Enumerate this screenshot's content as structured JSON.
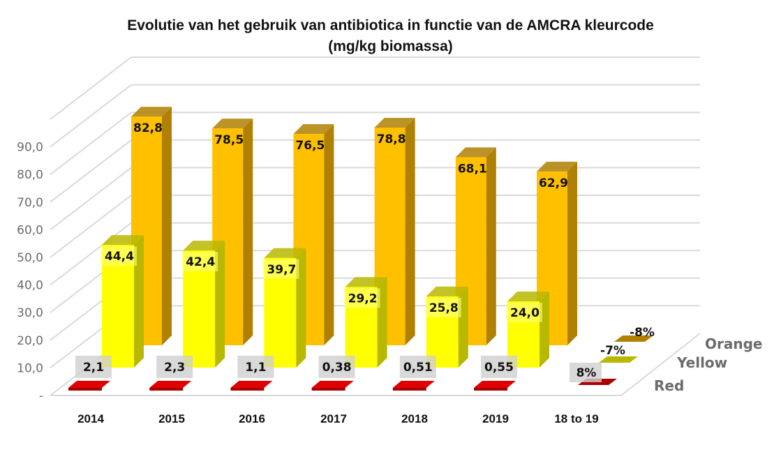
{
  "chart_data": {
    "type": "bar",
    "subtype": "3d-column-stacked-rows",
    "title": "Evolutie van het gebruik van antibiotica in functie van de AMCRA kleurcode",
    "subtitle": "(mg/kg biomassa)",
    "xlabel": "",
    "ylabel": "",
    "ylim": [
      0,
      90
    ],
    "yticks": [
      "-",
      "10,0",
      "20,0",
      "30,0",
      "40,0",
      "50,0",
      "60,0",
      "70,0",
      "80,0",
      "90,0"
    ],
    "categories": [
      "2014",
      "2015",
      "2016",
      "2017",
      "2018",
      "2019",
      "18 to 19"
    ],
    "grid": true,
    "legend": "series-axis-right",
    "series": [
      {
        "name": "Red",
        "color": "#e00000",
        "side": "#a80000",
        "values": [
          2.1,
          2.3,
          1.1,
          0.38,
          0.51,
          0.55,
          null
        ],
        "labels": [
          "2,1",
          "2,3",
          "1,1",
          "0,38",
          "0,51",
          "0,55",
          "8%"
        ],
        "change": "8%"
      },
      {
        "name": "Yellow",
        "color": "#ffff00",
        "side": "#b8b800",
        "values": [
          44.4,
          42.4,
          39.7,
          29.2,
          25.8,
          24.0,
          null
        ],
        "labels": [
          "44,4",
          "42,4",
          "39,7",
          "29,2",
          "25,8",
          "24,0",
          "-7%"
        ],
        "change": "-7%"
      },
      {
        "name": "Orange",
        "color": "#ffc000",
        "side": "#b08000",
        "values": [
          82.8,
          78.5,
          76.5,
          78.8,
          68.1,
          62.9,
          null
        ],
        "labels": [
          "82,8",
          "78,5",
          "76,5",
          "78,8",
          "68,1",
          "62,9",
          "-8%"
        ],
        "change": "-8%"
      }
    ]
  }
}
